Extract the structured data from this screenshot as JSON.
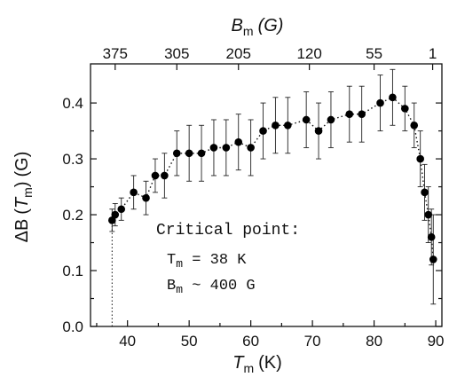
{
  "chart_data": {
    "type": "scatter",
    "x_label": {
      "symbol": "T",
      "subscript": "m",
      "unit": "(K)"
    },
    "y_label": {
      "prefix": "ΔB",
      "symbol": "T",
      "subscript": "m",
      "unit": "(G)"
    },
    "top_label": {
      "symbol": "B",
      "subscript": "m",
      "unit": "(G)"
    },
    "xlim": [
      34,
      91
    ],
    "ylim": [
      0.0,
      0.47
    ],
    "x_ticks": [
      40,
      50,
      60,
      70,
      80,
      90
    ],
    "y_ticks": [
      0.0,
      0.1,
      0.2,
      0.3,
      0.4
    ],
    "y_tick_labels": [
      "0.0",
      "0.1",
      "0.2",
      "0.3",
      "0.4"
    ],
    "top_ticks": [
      {
        "x": 38,
        "label": "375"
      },
      {
        "x": 48,
        "label": "305"
      },
      {
        "x": 58,
        "label": "205"
      },
      {
        "x": 69.5,
        "label": "120"
      },
      {
        "x": 80,
        "label": "55"
      },
      {
        "x": 89.5,
        "label": "1"
      }
    ],
    "series": [
      {
        "marker": "filled-circle",
        "line": "dotted",
        "color": "#000000",
        "x": [
          37.5,
          38,
          39,
          41,
          43,
          44.5,
          46,
          48,
          50,
          52,
          54,
          56,
          58,
          60,
          62,
          64,
          66,
          69,
          71,
          73,
          76,
          78,
          81,
          83,
          85,
          86.5,
          87.5,
          88.2,
          88.8,
          89.3,
          89.6
        ],
        "y": [
          0.19,
          0.2,
          0.21,
          0.24,
          0.23,
          0.27,
          0.27,
          0.31,
          0.31,
          0.31,
          0.32,
          0.32,
          0.33,
          0.32,
          0.35,
          0.36,
          0.36,
          0.37,
          0.35,
          0.37,
          0.38,
          0.38,
          0.4,
          0.41,
          0.39,
          0.36,
          0.3,
          0.24,
          0.2,
          0.16,
          0.12
        ],
        "error": [
          0.02,
          0.02,
          0.02,
          0.03,
          0.03,
          0.03,
          0.04,
          0.04,
          0.05,
          0.05,
          0.05,
          0.05,
          0.05,
          0.05,
          0.05,
          0.05,
          0.05,
          0.05,
          0.05,
          0.05,
          0.05,
          0.05,
          0.05,
          0.05,
          0.04,
          0.04,
          0.05,
          0.05,
          0.05,
          0.05,
          0.08
        ]
      }
    ],
    "drop_line": {
      "x": 37.5,
      "from": 0.0,
      "to": 0.19,
      "style": "dotted"
    },
    "annotation": {
      "heading": "Critical point:",
      "line1": "T",
      "line1_sub": "m",
      "line1_rest": " = 38 K",
      "line2": "B",
      "line2_sub": "m",
      "line2_rest": " ~ 400 G"
    }
  }
}
